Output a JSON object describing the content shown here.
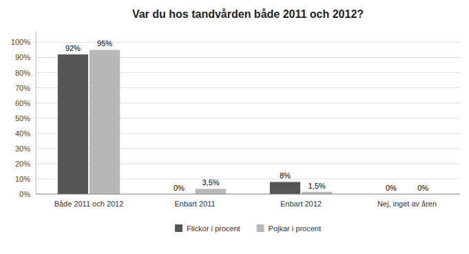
{
  "chart_data": {
    "type": "bar",
    "title": "Var du hos tandvården både 2011 och 2012?",
    "categories": [
      "Både 2011 och 2012",
      "Enbart 2011",
      "Enbart 2012",
      "Nej, inget av åren"
    ],
    "series": [
      {
        "name": "Flickor i procent",
        "color": "#555555",
        "values": [
          92,
          0,
          8,
          0
        ],
        "value_labels": [
          "92%",
          "0%",
          "8%",
          "0%"
        ]
      },
      {
        "name": "Pojkar i procent",
        "color": "#b8b8b8",
        "values": [
          95,
          3.5,
          1.5,
          0
        ],
        "value_labels": [
          "95%",
          "3,5%",
          "1,5%",
          "0%"
        ]
      }
    ],
    "ylim": [
      0,
      107
    ],
    "yticks": [
      {
        "value": 0,
        "label": "0%"
      },
      {
        "value": 10,
        "label": "10%"
      },
      {
        "value": 20,
        "label": "20%"
      },
      {
        "value": 30,
        "label": "30%"
      },
      {
        "value": 40,
        "label": "40%"
      },
      {
        "value": 50,
        "label": "50%"
      },
      {
        "value": 60,
        "label": "60%"
      },
      {
        "value": 70,
        "label": "70%"
      },
      {
        "value": 80,
        "label": "80%"
      },
      {
        "value": 90,
        "label": "90%"
      },
      {
        "value": 100,
        "label": "100%"
      }
    ],
    "grid": true,
    "legend": "bottom",
    "data_labels": true
  }
}
